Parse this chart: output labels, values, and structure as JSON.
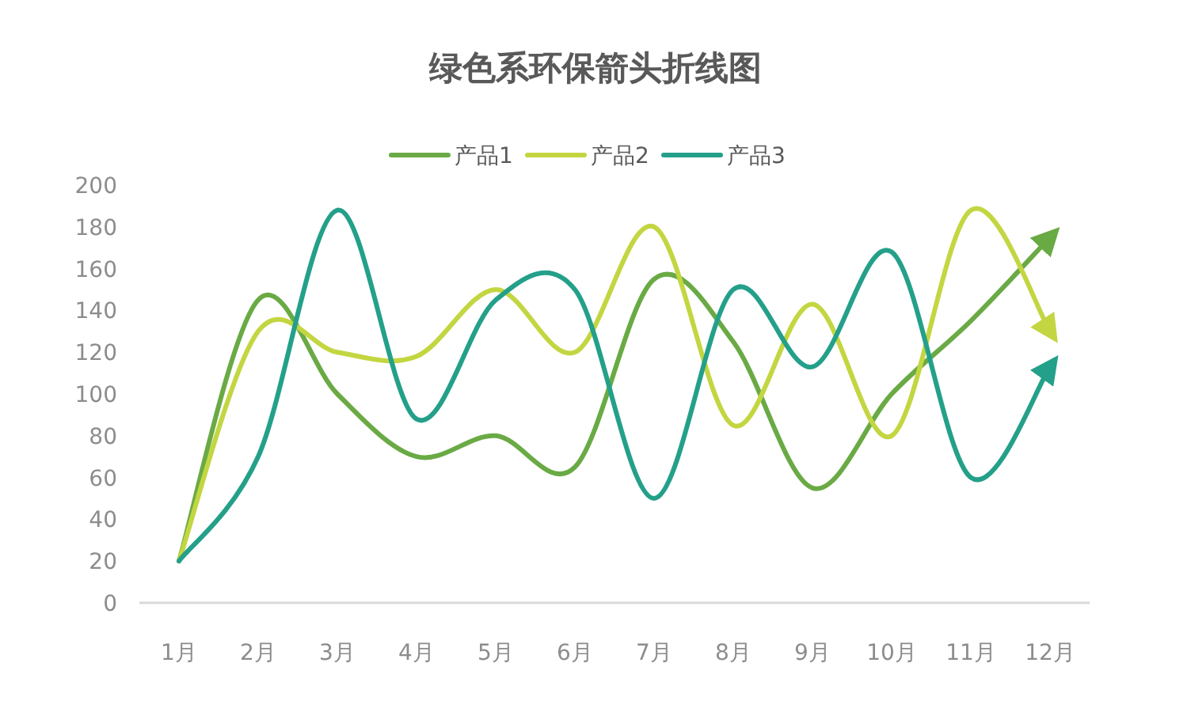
{
  "chart_data": {
    "type": "line",
    "title": "绿色系环保箭头折线图",
    "categories": [
      "1月",
      "2月",
      "3月",
      "4月",
      "5月",
      "6月",
      "7月",
      "8月",
      "9月",
      "10月",
      "11月",
      "12月"
    ],
    "series": [
      {
        "name": "产品1",
        "color": "#6aaa45",
        "values": [
          20,
          145,
          100,
          70,
          80,
          65,
          155,
          125,
          55,
          100,
          135,
          175
        ]
      },
      {
        "name": "产品2",
        "color": "#c3d641",
        "values": [
          20,
          130,
          120,
          118,
          150,
          120,
          180,
          85,
          143,
          80,
          188,
          130
        ]
      },
      {
        "name": "产品3",
        "color": "#24a08a",
        "values": [
          20,
          70,
          188,
          88,
          145,
          150,
          50,
          150,
          113,
          168,
          60,
          113
        ]
      }
    ],
    "ylim": [
      0,
      200
    ],
    "yticks": [
      0,
      20,
      40,
      60,
      80,
      100,
      120,
      140,
      160,
      180,
      200
    ],
    "legend": "top",
    "grid": false
  }
}
